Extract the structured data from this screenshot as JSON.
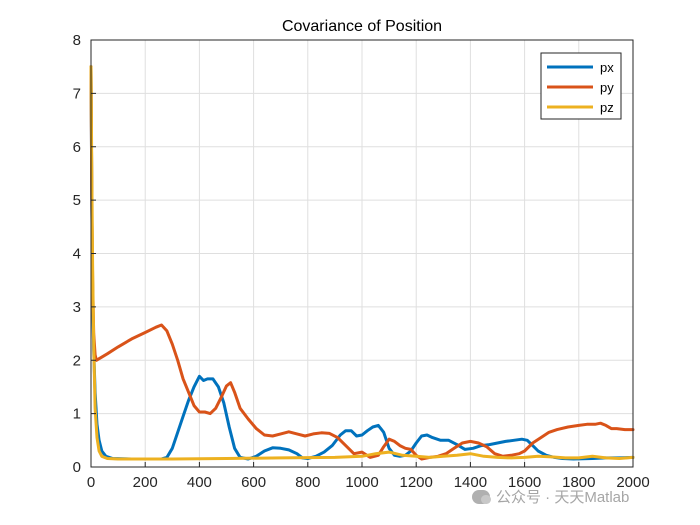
{
  "chart_data": {
    "type": "line",
    "title": "Covariance of Position",
    "xlabel": "",
    "ylabel": "",
    "xlim": [
      0,
      2000
    ],
    "ylim": [
      0,
      8
    ],
    "xticks": [
      0,
      200,
      400,
      600,
      800,
      1000,
      1200,
      1400,
      1600,
      1800,
      2000
    ],
    "yticks": [
      0,
      1,
      2,
      3,
      4,
      5,
      6,
      7,
      8
    ],
    "grid": true,
    "legend_position": "top-right",
    "series": [
      {
        "name": "px",
        "color": "#0072BD",
        "points": [
          [
            0,
            7.5
          ],
          [
            3,
            5.0
          ],
          [
            6,
            3.2
          ],
          [
            10,
            2.2
          ],
          [
            15,
            1.4
          ],
          [
            22,
            0.8
          ],
          [
            30,
            0.5
          ],
          [
            40,
            0.3
          ],
          [
            55,
            0.2
          ],
          [
            80,
            0.16
          ],
          [
            150,
            0.15
          ],
          [
            260,
            0.15
          ],
          [
            280,
            0.18
          ],
          [
            300,
            0.35
          ],
          [
            320,
            0.65
          ],
          [
            340,
            0.95
          ],
          [
            360,
            1.25
          ],
          [
            380,
            1.5
          ],
          [
            400,
            1.7
          ],
          [
            415,
            1.62
          ],
          [
            430,
            1.65
          ],
          [
            450,
            1.65
          ],
          [
            470,
            1.5
          ],
          [
            490,
            1.2
          ],
          [
            510,
            0.75
          ],
          [
            530,
            0.35
          ],
          [
            550,
            0.18
          ],
          [
            580,
            0.15
          ],
          [
            610,
            0.2
          ],
          [
            640,
            0.3
          ],
          [
            670,
            0.36
          ],
          [
            700,
            0.35
          ],
          [
            730,
            0.32
          ],
          [
            760,
            0.25
          ],
          [
            780,
            0.17
          ],
          [
            800,
            0.16
          ],
          [
            830,
            0.2
          ],
          [
            860,
            0.28
          ],
          [
            890,
            0.4
          ],
          [
            920,
            0.6
          ],
          [
            940,
            0.68
          ],
          [
            960,
            0.68
          ],
          [
            980,
            0.58
          ],
          [
            1000,
            0.6
          ],
          [
            1020,
            0.68
          ],
          [
            1040,
            0.75
          ],
          [
            1060,
            0.78
          ],
          [
            1080,
            0.65
          ],
          [
            1100,
            0.35
          ],
          [
            1120,
            0.22
          ],
          [
            1140,
            0.2
          ],
          [
            1160,
            0.22
          ],
          [
            1180,
            0.3
          ],
          [
            1200,
            0.45
          ],
          [
            1220,
            0.58
          ],
          [
            1240,
            0.6
          ],
          [
            1260,
            0.55
          ],
          [
            1290,
            0.5
          ],
          [
            1320,
            0.5
          ],
          [
            1350,
            0.42
          ],
          [
            1380,
            0.33
          ],
          [
            1410,
            0.35
          ],
          [
            1440,
            0.4
          ],
          [
            1470,
            0.42
          ],
          [
            1500,
            0.45
          ],
          [
            1530,
            0.48
          ],
          [
            1560,
            0.5
          ],
          [
            1590,
            0.52
          ],
          [
            1610,
            0.5
          ],
          [
            1630,
            0.4
          ],
          [
            1650,
            0.3
          ],
          [
            1680,
            0.22
          ],
          [
            1710,
            0.18
          ],
          [
            1740,
            0.16
          ],
          [
            1780,
            0.15
          ],
          [
            1850,
            0.16
          ],
          [
            1900,
            0.17
          ],
          [
            1950,
            0.17
          ],
          [
            2000,
            0.18
          ]
        ]
      },
      {
        "name": "py",
        "color": "#D95319",
        "points": [
          [
            0,
            7.5
          ],
          [
            3,
            5.0
          ],
          [
            6,
            3.5
          ],
          [
            10,
            2.5
          ],
          [
            15,
            2.1
          ],
          [
            20,
            2.0
          ],
          [
            60,
            2.12
          ],
          [
            100,
            2.25
          ],
          [
            150,
            2.4
          ],
          [
            200,
            2.52
          ],
          [
            240,
            2.62
          ],
          [
            260,
            2.66
          ],
          [
            280,
            2.55
          ],
          [
            300,
            2.3
          ],
          [
            320,
            2.0
          ],
          [
            340,
            1.65
          ],
          [
            360,
            1.4
          ],
          [
            380,
            1.15
          ],
          [
            400,
            1.03
          ],
          [
            420,
            1.03
          ],
          [
            440,
            1.0
          ],
          [
            460,
            1.1
          ],
          [
            480,
            1.3
          ],
          [
            500,
            1.52
          ],
          [
            515,
            1.58
          ],
          [
            530,
            1.4
          ],
          [
            550,
            1.1
          ],
          [
            580,
            0.9
          ],
          [
            610,
            0.72
          ],
          [
            640,
            0.6
          ],
          [
            670,
            0.58
          ],
          [
            700,
            0.62
          ],
          [
            730,
            0.66
          ],
          [
            760,
            0.62
          ],
          [
            790,
            0.58
          ],
          [
            820,
            0.62
          ],
          [
            850,
            0.64
          ],
          [
            880,
            0.63
          ],
          [
            910,
            0.55
          ],
          [
            940,
            0.4
          ],
          [
            970,
            0.25
          ],
          [
            1000,
            0.28
          ],
          [
            1030,
            0.18
          ],
          [
            1060,
            0.22
          ],
          [
            1080,
            0.38
          ],
          [
            1100,
            0.52
          ],
          [
            1120,
            0.48
          ],
          [
            1140,
            0.4
          ],
          [
            1160,
            0.35
          ],
          [
            1180,
            0.33
          ],
          [
            1200,
            0.22
          ],
          [
            1220,
            0.15
          ],
          [
            1250,
            0.18
          ],
          [
            1280,
            0.2
          ],
          [
            1310,
            0.25
          ],
          [
            1340,
            0.35
          ],
          [
            1370,
            0.45
          ],
          [
            1400,
            0.48
          ],
          [
            1430,
            0.45
          ],
          [
            1460,
            0.38
          ],
          [
            1490,
            0.25
          ],
          [
            1520,
            0.2
          ],
          [
            1550,
            0.22
          ],
          [
            1580,
            0.25
          ],
          [
            1600,
            0.3
          ],
          [
            1630,
            0.45
          ],
          [
            1660,
            0.55
          ],
          [
            1690,
            0.65
          ],
          [
            1720,
            0.7
          ],
          [
            1760,
            0.75
          ],
          [
            1800,
            0.78
          ],
          [
            1830,
            0.8
          ],
          [
            1860,
            0.8
          ],
          [
            1880,
            0.82
          ],
          [
            1900,
            0.78
          ],
          [
            1920,
            0.72
          ],
          [
            1940,
            0.72
          ],
          [
            1970,
            0.7
          ],
          [
            2000,
            0.7
          ]
        ]
      },
      {
        "name": "pz",
        "color": "#EDB120",
        "points": [
          [
            0,
            7.5
          ],
          [
            3,
            5.5
          ],
          [
            6,
            3.8
          ],
          [
            10,
            2.3
          ],
          [
            15,
            1.1
          ],
          [
            22,
            0.55
          ],
          [
            30,
            0.3
          ],
          [
            40,
            0.2
          ],
          [
            60,
            0.16
          ],
          [
            100,
            0.15
          ],
          [
            300,
            0.15
          ],
          [
            500,
            0.16
          ],
          [
            700,
            0.17
          ],
          [
            900,
            0.18
          ],
          [
            1000,
            0.2
          ],
          [
            1050,
            0.25
          ],
          [
            1100,
            0.28
          ],
          [
            1150,
            0.22
          ],
          [
            1200,
            0.2
          ],
          [
            1250,
            0.18
          ],
          [
            1300,
            0.2
          ],
          [
            1350,
            0.22
          ],
          [
            1400,
            0.25
          ],
          [
            1450,
            0.2
          ],
          [
            1500,
            0.18
          ],
          [
            1550,
            0.17
          ],
          [
            1600,
            0.18
          ],
          [
            1650,
            0.2
          ],
          [
            1700,
            0.19
          ],
          [
            1750,
            0.17
          ],
          [
            1800,
            0.17
          ],
          [
            1850,
            0.2
          ],
          [
            1900,
            0.17
          ],
          [
            1950,
            0.16
          ],
          [
            2000,
            0.18
          ]
        ]
      }
    ]
  },
  "watermark": {
    "text": "公众号 · 天天Matlab",
    "icon": "wechat-icon"
  }
}
